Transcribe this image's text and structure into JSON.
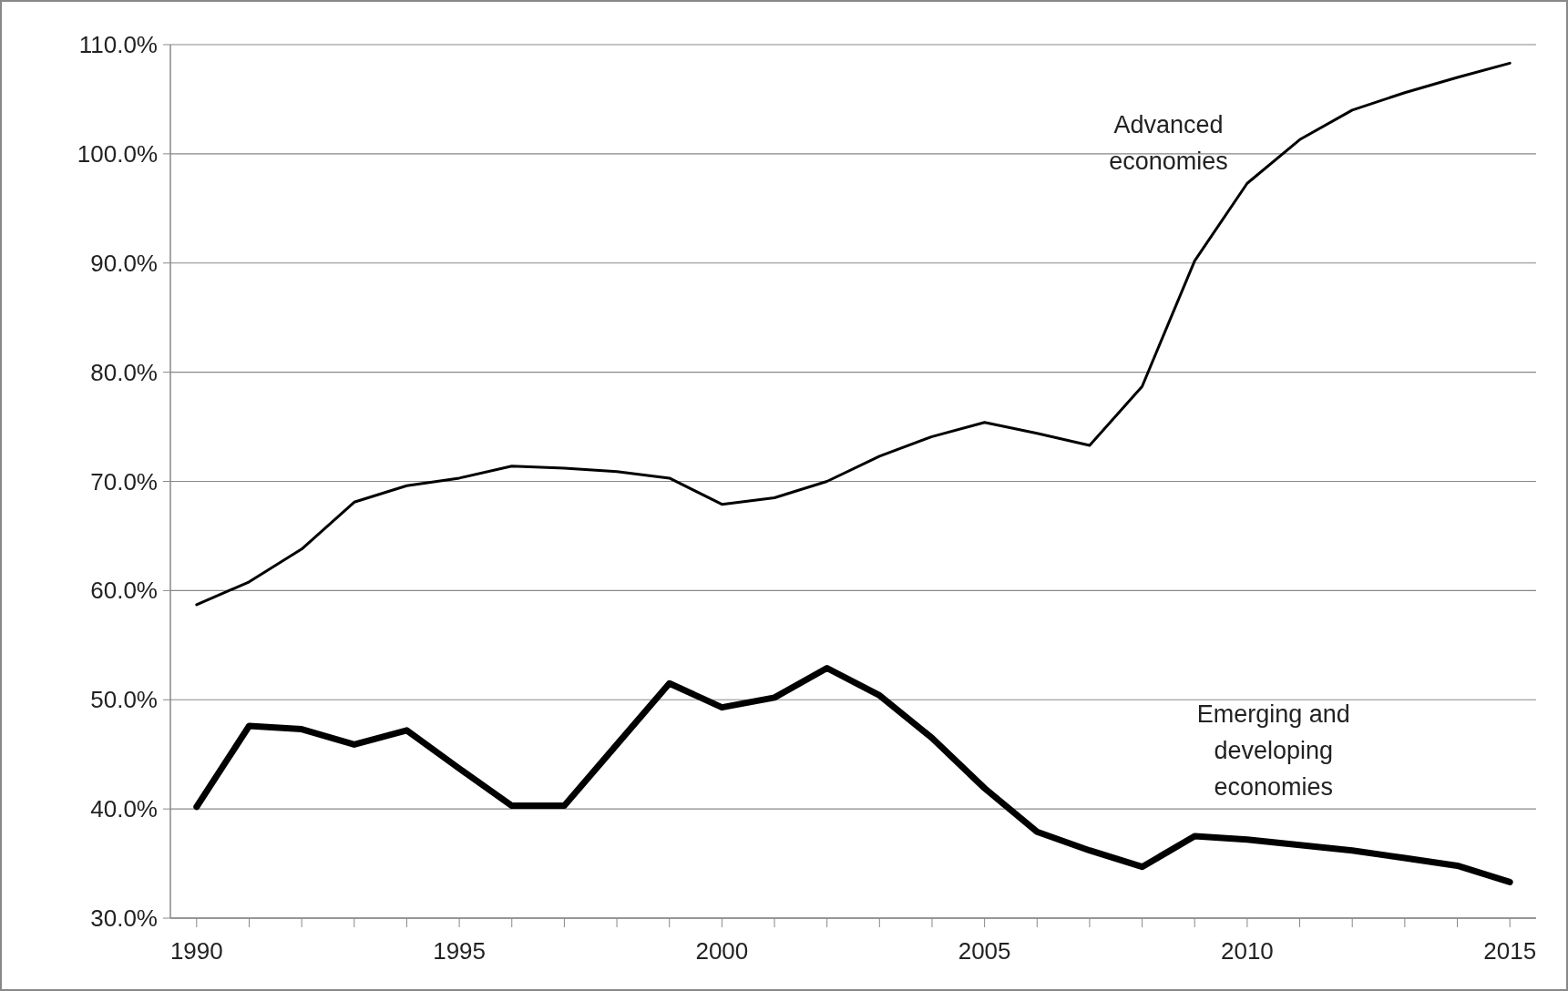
{
  "chart_data": {
    "type": "line",
    "x": [
      1990,
      1991,
      1992,
      1993,
      1994,
      1995,
      1996,
      1997,
      1998,
      1999,
      2000,
      2001,
      2002,
      2003,
      2004,
      2005,
      2006,
      2007,
      2008,
      2009,
      2010,
      2011,
      2012,
      2013,
      2014,
      2015
    ],
    "series": [
      {
        "name": "Advanced economies",
        "color": "#000000",
        "values": [
          58.7,
          60.8,
          63.8,
          68.1,
          69.6,
          70.3,
          71.4,
          71.2,
          70.9,
          70.3,
          67.9,
          68.5,
          70.0,
          72.3,
          74.1,
          75.4,
          74.4,
          73.3,
          78.7,
          90.2,
          97.3,
          101.3,
          104.0,
          105.6,
          107.0,
          108.3
        ]
      },
      {
        "name": "Emerging and developing economies",
        "color": "#000000",
        "values": [
          40.2,
          47.6,
          47.3,
          45.9,
          47.2,
          43.7,
          40.3,
          40.3,
          45.9,
          51.5,
          49.3,
          50.2,
          52.9,
          50.4,
          46.5,
          41.9,
          37.9,
          36.2,
          34.7,
          37.5,
          37.2,
          36.7,
          36.2,
          35.5,
          34.8,
          33.3
        ]
      }
    ],
    "xlim": [
      1989.5,
      2015.5
    ],
    "xticks": [
      1990,
      {
        "value": 1991,
        "label": null
      },
      {
        "value": 1992,
        "label": null
      },
      {
        "value": 1993,
        "label": null
      },
      {
        "value": 1994,
        "label": null
      },
      1995,
      {
        "value": 1996,
        "label": null
      },
      {
        "value": 1997,
        "label": null
      },
      {
        "value": 1998,
        "label": null
      },
      {
        "value": 1999,
        "label": null
      },
      2000,
      {
        "value": 2001,
        "label": null
      },
      {
        "value": 2002,
        "label": null
      },
      {
        "value": 2003,
        "label": null
      },
      {
        "value": 2004,
        "label": null
      },
      2005,
      {
        "value": 2006,
        "label": null
      },
      {
        "value": 2007,
        "label": null
      },
      {
        "value": 2008,
        "label": null
      },
      {
        "value": 2009,
        "label": null
      },
      2010,
      {
        "value": 2011,
        "label": null
      },
      {
        "value": 2012,
        "label": null
      },
      {
        "value": 2013,
        "label": null
      },
      {
        "value": 2014,
        "label": null
      },
      2015
    ],
    "ylim": [
      30,
      110
    ],
    "yticks": [
      {
        "value": 30,
        "label": "30.0%"
      },
      {
        "value": 40,
        "label": "40.0%"
      },
      {
        "value": 50,
        "label": "50.0%"
      },
      {
        "value": 60,
        "label": "60.0%"
      },
      {
        "value": 70,
        "label": "70.0%"
      },
      {
        "value": 80,
        "label": "80.0%"
      },
      {
        "value": 90,
        "label": "90.0%"
      },
      {
        "value": 100,
        "label": "100.0%"
      },
      {
        "value": 110,
        "label": "110.0%"
      }
    ],
    "grid": "y",
    "legend": false,
    "marker": "none",
    "line_style": "solid"
  }
}
